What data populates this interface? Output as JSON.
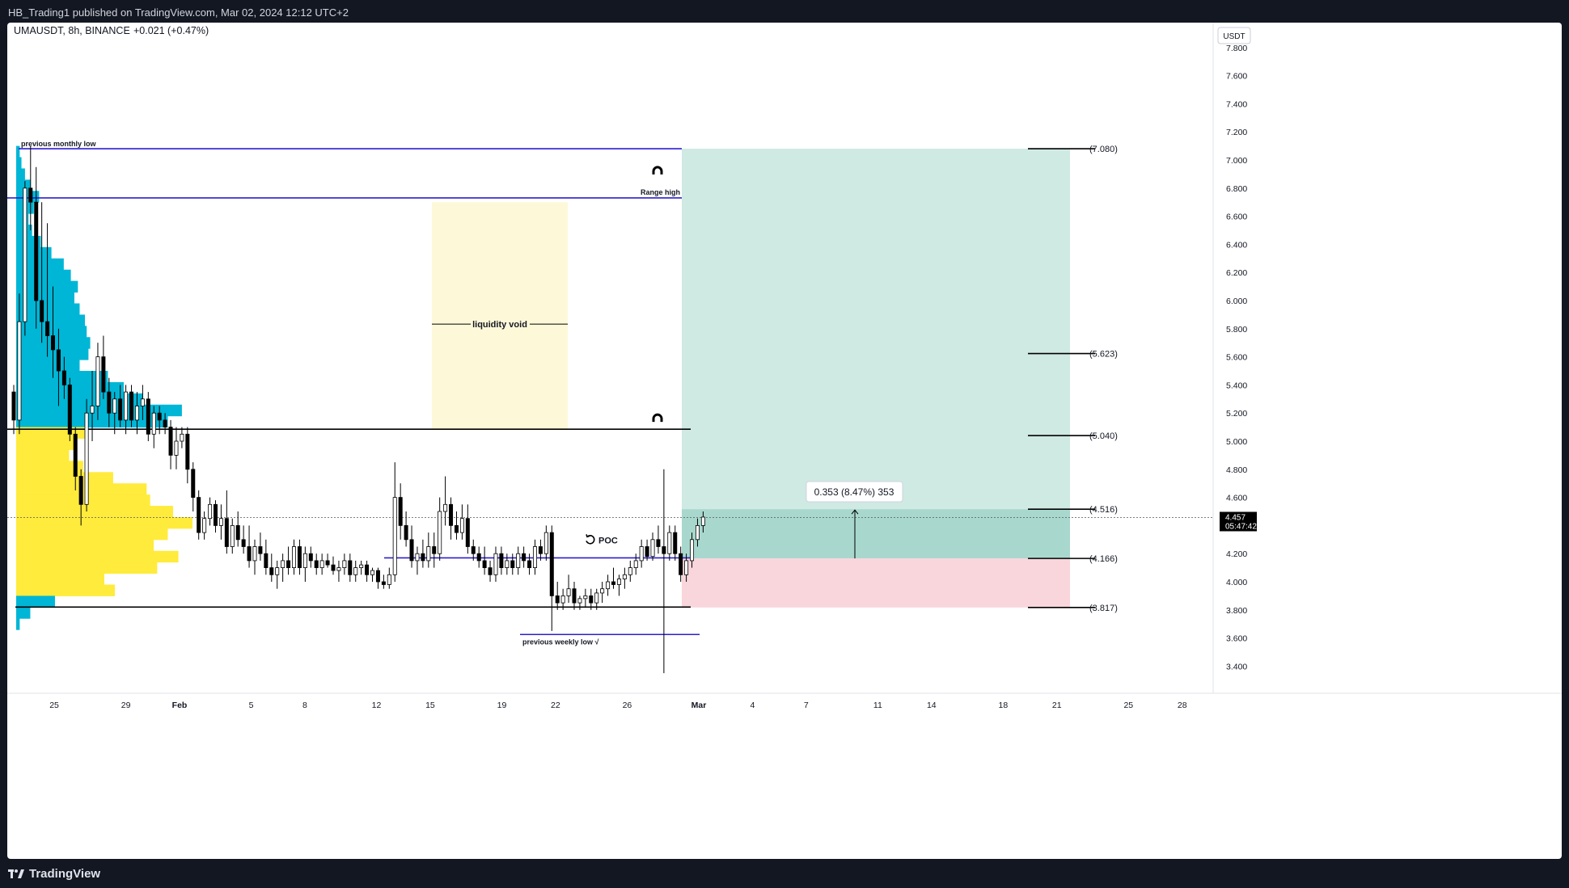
{
  "header": {
    "published": "HB_Trading1 published on TradingView.com, Mar 02, 2024 12:12 UTC+2"
  },
  "footer": {
    "brand": "TradingView"
  },
  "legend": {
    "symbol": "UMAUSDT, 8h, BINANCE",
    "change": "+0.021 (+0.47%)"
  },
  "price_axis": {
    "currency": "USDT",
    "last_price": "4.457",
    "countdown": "05:47:42"
  },
  "colors": {
    "up": "#ffffff",
    "down": "#000000",
    "profit_zone": "#cfe9e3",
    "stop_zone": "#f9d6dc",
    "void_zone": "#fdf8d8",
    "vp_upper": "#00b6d6",
    "vp_lower": "#ffeb3b",
    "level_blue": "#2c1fcf",
    "level_black": "#000000"
  },
  "chart_data": {
    "type": "candlestick",
    "symbol": "UMAUSDT",
    "interval": "8h",
    "exchange": "BINANCE",
    "y_ticks": [
      3.4,
      3.6,
      3.8,
      4.0,
      4.2,
      4.4,
      4.6,
      4.8,
      5.0,
      5.2,
      5.4,
      5.6,
      5.8,
      6.0,
      6.2,
      6.4,
      6.6,
      6.8,
      7.0,
      7.2,
      7.4,
      7.6,
      7.8
    ],
    "y_tick_labels": [
      "3.400",
      "3.600",
      "3.800",
      "4.000",
      "4.200",
      "4.400",
      "4.600",
      "4.800",
      "5.000",
      "5.200",
      "5.400",
      "5.600",
      "5.800",
      "6.000",
      "6.200",
      "6.400",
      "6.600",
      "6.800",
      "7.000",
      "7.200",
      "7.400",
      "7.600",
      "7.800"
    ],
    "ylim": [
      3.3,
      7.95
    ],
    "x_ticks": [
      {
        "label": "25",
        "day": -7
      },
      {
        "label": "29",
        "day": -3
      },
      {
        "label": "Feb",
        "day": 0
      },
      {
        "label": "5",
        "day": 4
      },
      {
        "label": "8",
        "day": 7
      },
      {
        "label": "12",
        "day": 11
      },
      {
        "label": "15",
        "day": 14
      },
      {
        "label": "19",
        "day": 18
      },
      {
        "label": "22",
        "day": 21
      },
      {
        "label": "26",
        "day": 25
      },
      {
        "label": "Mar",
        "day": 29
      },
      {
        "label": "4",
        "day": 32
      },
      {
        "label": "7",
        "day": 35
      },
      {
        "label": "11",
        "day": 39
      },
      {
        "label": "14",
        "day": 42
      },
      {
        "label": "18",
        "day": 46
      },
      {
        "label": "21",
        "day": 49
      },
      {
        "label": "25",
        "day": 53
      },
      {
        "label": "28",
        "day": 56
      }
    ],
    "x_ticks_bold": [
      "Feb",
      "Mar"
    ],
    "candles_ohlc": [
      [
        5.35,
        5.4,
        5.05,
        5.15
      ],
      [
        5.15,
        6.05,
        5.05,
        5.85
      ],
      [
        5.85,
        6.85,
        5.75,
        6.8
      ],
      [
        6.8,
        7.1,
        6.5,
        6.7
      ],
      [
        6.7,
        6.95,
        5.8,
        6.0
      ],
      [
        6.0,
        6.7,
        5.7,
        5.85
      ],
      [
        5.85,
        6.55,
        5.6,
        5.75
      ],
      [
        5.75,
        6.1,
        5.45,
        5.65
      ],
      [
        5.65,
        5.8,
        5.25,
        5.5
      ],
      [
        5.5,
        5.6,
        5.3,
        5.4
      ],
      [
        5.4,
        5.45,
        5.0,
        5.05
      ],
      [
        5.05,
        5.1,
        4.65,
        4.75
      ],
      [
        4.75,
        4.8,
        4.4,
        4.55
      ],
      [
        4.55,
        5.3,
        4.5,
        5.2
      ],
      [
        5.2,
        5.5,
        5.0,
        5.25
      ],
      [
        5.25,
        5.7,
        5.15,
        5.6
      ],
      [
        5.6,
        5.75,
        5.3,
        5.35
      ],
      [
        5.35,
        5.45,
        5.1,
        5.2
      ],
      [
        5.2,
        5.35,
        5.05,
        5.3
      ],
      [
        5.3,
        5.4,
        5.1,
        5.15
      ],
      [
        5.15,
        5.4,
        5.05,
        5.35
      ],
      [
        5.35,
        5.4,
        5.1,
        5.15
      ],
      [
        5.15,
        5.35,
        5.05,
        5.25
      ],
      [
        5.25,
        5.4,
        5.15,
        5.3
      ],
      [
        5.3,
        5.35,
        5.0,
        5.05
      ],
      [
        5.05,
        5.25,
        4.95,
        5.2
      ],
      [
        5.2,
        5.25,
        5.05,
        5.15
      ],
      [
        5.15,
        5.2,
        5.05,
        5.1
      ],
      [
        5.1,
        5.15,
        4.8,
        4.9
      ],
      [
        4.9,
        5.1,
        4.8,
        5.0
      ],
      [
        5.0,
        5.1,
        4.95,
        5.05
      ],
      [
        5.05,
        5.1,
        4.7,
        4.8
      ],
      [
        4.8,
        4.85,
        4.5,
        4.6
      ],
      [
        4.6,
        4.65,
        4.3,
        4.35
      ],
      [
        4.35,
        4.5,
        4.3,
        4.45
      ],
      [
        4.45,
        4.6,
        4.4,
        4.55
      ],
      [
        4.55,
        4.58,
        4.35,
        4.4
      ],
      [
        4.4,
        4.55,
        4.3,
        4.45
      ],
      [
        4.45,
        4.65,
        4.2,
        4.25
      ],
      [
        4.25,
        4.45,
        4.2,
        4.4
      ],
      [
        4.4,
        4.5,
        4.25,
        4.3
      ],
      [
        4.3,
        4.4,
        4.2,
        4.25
      ],
      [
        4.25,
        4.4,
        4.1,
        4.15
      ],
      [
        4.15,
        4.3,
        4.05,
        4.25
      ],
      [
        4.25,
        4.35,
        4.15,
        4.2
      ],
      [
        4.2,
        4.3,
        4.05,
        4.1
      ],
      [
        4.1,
        4.2,
        4.0,
        4.05
      ],
      [
        4.05,
        4.15,
        3.95,
        4.1
      ],
      [
        4.1,
        4.2,
        4.0,
        4.15
      ],
      [
        4.15,
        4.25,
        4.05,
        4.1
      ],
      [
        4.1,
        4.3,
        4.05,
        4.25
      ],
      [
        4.25,
        4.3,
        4.05,
        4.1
      ],
      [
        4.1,
        4.25,
        4.0,
        4.2
      ],
      [
        4.2,
        4.25,
        4.1,
        4.15
      ],
      [
        4.15,
        4.2,
        4.05,
        4.1
      ],
      [
        4.1,
        4.2,
        4.05,
        4.15
      ],
      [
        4.15,
        4.2,
        4.1,
        4.12
      ],
      [
        4.12,
        4.18,
        4.05,
        4.08
      ],
      [
        4.08,
        4.15,
        4.0,
        4.1
      ],
      [
        4.1,
        4.2,
        4.05,
        4.15
      ],
      [
        4.15,
        4.2,
        4.0,
        4.05
      ],
      [
        4.05,
        4.15,
        4.0,
        4.1
      ],
      [
        4.1,
        4.15,
        4.05,
        4.12
      ],
      [
        4.12,
        4.15,
        4.0,
        4.05
      ],
      [
        4.05,
        4.1,
        4.0,
        4.08
      ],
      [
        4.08,
        4.1,
        3.95,
        4.0
      ],
      [
        4.0,
        4.05,
        3.95,
        3.98
      ],
      [
        3.98,
        4.1,
        3.95,
        4.05
      ],
      [
        4.05,
        4.85,
        4.0,
        4.6
      ],
      [
        4.6,
        4.7,
        4.3,
        4.4
      ],
      [
        4.4,
        4.5,
        4.25,
        4.3
      ],
      [
        4.3,
        4.4,
        4.1,
        4.15
      ],
      [
        4.15,
        4.25,
        4.05,
        4.2
      ],
      [
        4.2,
        4.3,
        4.1,
        4.15
      ],
      [
        4.15,
        4.35,
        4.1,
        4.25
      ],
      [
        4.25,
        4.35,
        4.1,
        4.2
      ],
      [
        4.2,
        4.6,
        4.15,
        4.5
      ],
      [
        4.5,
        4.75,
        4.4,
        4.55
      ],
      [
        4.55,
        4.6,
        4.3,
        4.4
      ],
      [
        4.4,
        4.5,
        4.3,
        4.35
      ],
      [
        4.35,
        4.55,
        4.3,
        4.45
      ],
      [
        4.45,
        4.55,
        4.2,
        4.25
      ],
      [
        4.25,
        4.3,
        4.15,
        4.2
      ],
      [
        4.2,
        4.25,
        4.1,
        4.15
      ],
      [
        4.15,
        4.25,
        4.05,
        4.1
      ],
      [
        4.1,
        4.15,
        4.0,
        4.05
      ],
      [
        4.05,
        4.25,
        4.0,
        4.2
      ],
      [
        4.2,
        4.25,
        4.05,
        4.1
      ],
      [
        4.1,
        4.2,
        4.05,
        4.15
      ],
      [
        4.15,
        4.2,
        4.05,
        4.1
      ],
      [
        4.1,
        4.25,
        4.05,
        4.2
      ],
      [
        4.2,
        4.25,
        4.1,
        4.15
      ],
      [
        4.15,
        4.2,
        4.05,
        4.1
      ],
      [
        4.1,
        4.3,
        4.05,
        4.25
      ],
      [
        4.25,
        4.3,
        4.15,
        4.2
      ],
      [
        4.2,
        4.4,
        4.15,
        4.35
      ],
      [
        4.35,
        4.4,
        3.65,
        3.9
      ],
      [
        3.9,
        4.0,
        3.8,
        3.85
      ],
      [
        3.85,
        3.95,
        3.8,
        3.9
      ],
      [
        3.9,
        4.05,
        3.85,
        3.95
      ],
      [
        3.95,
        4.0,
        3.8,
        3.85
      ],
      [
        3.85,
        3.9,
        3.8,
        3.88
      ],
      [
        3.88,
        3.95,
        3.82,
        3.9
      ],
      [
        3.9,
        3.95,
        3.8,
        3.85
      ],
      [
        3.85,
        3.95,
        3.8,
        3.92
      ],
      [
        3.92,
        4.0,
        3.85,
        3.95
      ],
      [
        3.95,
        4.05,
        3.9,
        4.0
      ],
      [
        4.0,
        4.1,
        3.95,
        3.98
      ],
      [
        3.98,
        4.05,
        3.9,
        4.02
      ],
      [
        4.02,
        4.1,
        3.95,
        4.05
      ],
      [
        4.05,
        4.15,
        4.0,
        4.1
      ],
      [
        4.1,
        4.2,
        4.05,
        4.15
      ],
      [
        4.15,
        4.3,
        4.1,
        4.25
      ],
      [
        4.25,
        4.3,
        4.15,
        4.18
      ],
      [
        4.18,
        4.35,
        4.15,
        4.3
      ],
      [
        4.3,
        4.4,
        4.2,
        4.25
      ],
      [
        4.25,
        4.8,
        3.35,
        4.2
      ],
      [
        4.2,
        4.4,
        4.15,
        4.35
      ],
      [
        4.35,
        4.4,
        4.15,
        4.2
      ],
      [
        4.2,
        4.25,
        4.0,
        4.05
      ],
      [
        4.05,
        4.2,
        4.0,
        4.15
      ],
      [
        4.15,
        4.35,
        4.1,
        4.3
      ],
      [
        4.3,
        4.45,
        4.25,
        4.4
      ],
      [
        4.4,
        4.5,
        4.35,
        4.46
      ]
    ],
    "levels": [
      {
        "label": "previous monthly low",
        "price": 7.08,
        "color": "blue"
      },
      {
        "label": "Range high",
        "price": 6.73,
        "color": "blue"
      },
      {
        "label": "",
        "price": 5.085,
        "color": "black"
      },
      {
        "label": "",
        "price": 4.17,
        "color": "blue"
      },
      {
        "label": "",
        "price": 3.82,
        "color": "black"
      },
      {
        "label": "previous weekly low √",
        "price": 3.625,
        "color": "blue"
      }
    ],
    "annotations": {
      "liquidity_void": {
        "label": "liquidity void",
        "price_top": 6.7,
        "price_bottom": 5.08
      },
      "poc": {
        "label": "POC",
        "price": 4.17
      },
      "magnet_prices": [
        6.92,
        5.16
      ]
    },
    "target_levels": [
      {
        "label": "(7.080)",
        "price": 7.08
      },
      {
        "label": "(5.623)",
        "price": 5.623
      },
      {
        "label": "(5.040)",
        "price": 5.04
      },
      {
        "label": "(4.516)",
        "price": 4.516
      },
      {
        "label": "(4.166)",
        "price": 4.166
      },
      {
        "label": "(3.817)",
        "price": 3.817
      }
    ],
    "position": {
      "type": "long",
      "entry": 4.166,
      "target": 7.08,
      "stop": 3.817,
      "measure_label": "0.353 (8.47%) 353"
    },
    "volume_profile": {
      "bins": [
        {
          "price": 7.06,
          "size": 0.02,
          "zone": "upper"
        },
        {
          "price": 6.98,
          "size": 0.03,
          "zone": "upper"
        },
        {
          "price": 6.9,
          "size": 0.05,
          "zone": "upper"
        },
        {
          "price": 6.82,
          "size": 0.08,
          "zone": "upper"
        },
        {
          "price": 6.74,
          "size": 0.13,
          "zone": "upper"
        },
        {
          "price": 6.66,
          "size": 0.1,
          "zone": "upper"
        },
        {
          "price": 6.58,
          "size": 0.07,
          "zone": "upper"
        },
        {
          "price": 6.5,
          "size": 0.09,
          "zone": "upper"
        },
        {
          "price": 6.42,
          "size": 0.14,
          "zone": "upper"
        },
        {
          "price": 6.34,
          "size": 0.2,
          "zone": "upper"
        },
        {
          "price": 6.26,
          "size": 0.27,
          "zone": "upper"
        },
        {
          "price": 6.18,
          "size": 0.31,
          "zone": "upper"
        },
        {
          "price": 6.1,
          "size": 0.35,
          "zone": "upper"
        },
        {
          "price": 6.02,
          "size": 0.33,
          "zone": "upper"
        },
        {
          "price": 5.94,
          "size": 0.36,
          "zone": "upper"
        },
        {
          "price": 5.86,
          "size": 0.39,
          "zone": "upper"
        },
        {
          "price": 5.78,
          "size": 0.4,
          "zone": "upper"
        },
        {
          "price": 5.7,
          "size": 0.42,
          "zone": "upper"
        },
        {
          "price": 5.62,
          "size": 0.41,
          "zone": "upper"
        },
        {
          "price": 5.54,
          "size": 0.36,
          "zone": "upper"
        },
        {
          "price": 5.46,
          "size": 0.52,
          "zone": "upper"
        },
        {
          "price": 5.38,
          "size": 0.61,
          "zone": "upper"
        },
        {
          "price": 5.3,
          "size": 0.72,
          "zone": "upper"
        },
        {
          "price": 5.22,
          "size": 0.94,
          "zone": "upper"
        },
        {
          "price": 5.14,
          "size": 0.86,
          "zone": "upper"
        },
        {
          "price": 5.06,
          "size": 0.4,
          "zone": "lower"
        },
        {
          "price": 4.98,
          "size": 0.34,
          "zone": "lower"
        },
        {
          "price": 4.9,
          "size": 0.3,
          "zone": "lower"
        },
        {
          "price": 4.82,
          "size": 0.38,
          "zone": "lower"
        },
        {
          "price": 4.74,
          "size": 0.55,
          "zone": "lower"
        },
        {
          "price": 4.66,
          "size": 0.74,
          "zone": "lower"
        },
        {
          "price": 4.58,
          "size": 0.76,
          "zone": "lower"
        },
        {
          "price": 4.5,
          "size": 0.89,
          "zone": "lower"
        },
        {
          "price": 4.42,
          "size": 1.0,
          "zone": "lower"
        },
        {
          "price": 4.34,
          "size": 0.86,
          "zone": "lower"
        },
        {
          "price": 4.26,
          "size": 0.78,
          "zone": "lower"
        },
        {
          "price": 4.18,
          "size": 0.92,
          "zone": "lower"
        },
        {
          "price": 4.1,
          "size": 0.8,
          "zone": "lower"
        },
        {
          "price": 4.02,
          "size": 0.5,
          "zone": "lower"
        },
        {
          "price": 3.94,
          "size": 0.56,
          "zone": "lower"
        },
        {
          "price": 3.86,
          "size": 0.22,
          "zone": "upper"
        },
        {
          "price": 3.78,
          "size": 0.08,
          "zone": "upper"
        },
        {
          "price": 3.7,
          "size": 0.02,
          "zone": "upper"
        }
      ]
    }
  }
}
